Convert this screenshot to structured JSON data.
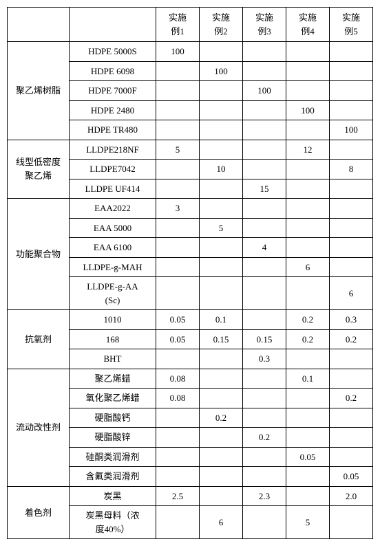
{
  "headers": {
    "c1": "实施\n例1",
    "c2": "实施\n例2",
    "c3": "实施\n例3",
    "c4": "实施\n例4",
    "c5": "实施\n例5"
  },
  "groups": [
    {
      "name": "聚乙烯树脂",
      "rows": [
        {
          "mat": "HDPE 5000S",
          "v": [
            "100",
            "",
            "",
            "",
            ""
          ]
        },
        {
          "mat": "HDPE 6098",
          "v": [
            "",
            "100",
            "",
            "",
            ""
          ]
        },
        {
          "mat": "HDPE 7000F",
          "v": [
            "",
            "",
            "100",
            "",
            ""
          ]
        },
        {
          "mat": "HDPE 2480",
          "v": [
            "",
            "",
            "",
            "100",
            ""
          ]
        },
        {
          "mat": "HDPE TR480",
          "v": [
            "",
            "",
            "",
            "",
            "100"
          ]
        }
      ]
    },
    {
      "name": "线型低密度\n聚乙烯",
      "rows": [
        {
          "mat": "LLDPE218NF",
          "v": [
            "5",
            "",
            "",
            "12",
            ""
          ]
        },
        {
          "mat": "LLDPE7042",
          "v": [
            "",
            "10",
            "",
            "",
            "8"
          ]
        },
        {
          "mat": "LLDPE UF414",
          "v": [
            "",
            "",
            "15",
            "",
            ""
          ]
        }
      ]
    },
    {
      "name": "功能聚合物",
      "rows": [
        {
          "mat": "EAA2022",
          "v": [
            "3",
            "",
            "",
            "",
            ""
          ]
        },
        {
          "mat": "EAA 5000",
          "v": [
            "",
            "5",
            "",
            "",
            ""
          ]
        },
        {
          "mat": "EAA 6100",
          "v": [
            "",
            "",
            "4",
            "",
            ""
          ]
        },
        {
          "mat": "LLDPE-g-MAH",
          "v": [
            "",
            "",
            "",
            "6",
            ""
          ]
        },
        {
          "mat": "LLDPE-g-AA\n(Sc)",
          "v": [
            "",
            "",
            "",
            "",
            "6"
          ]
        }
      ]
    },
    {
      "name": "抗氧剂",
      "rows": [
        {
          "mat": "1010",
          "v": [
            "0.05",
            "0.1",
            "",
            "0.2",
            "0.3"
          ]
        },
        {
          "mat": "168",
          "v": [
            "0.05",
            "0.15",
            "0.15",
            "0.2",
            "0.2"
          ]
        },
        {
          "mat": "BHT",
          "v": [
            "",
            "",
            "0.3",
            "",
            ""
          ]
        }
      ]
    },
    {
      "name": "流动改性剂",
      "rows": [
        {
          "mat": "聚乙烯蜡",
          "v": [
            "0.08",
            "",
            "",
            "0.1",
            ""
          ]
        },
        {
          "mat": "氧化聚乙烯蜡",
          "v": [
            "0.08",
            "",
            "",
            "",
            "0.2"
          ]
        },
        {
          "mat": "硬脂酸钙",
          "v": [
            "",
            "0.2",
            "",
            "",
            ""
          ]
        },
        {
          "mat": "硬脂酸锌",
          "v": [
            "",
            "",
            "0.2",
            "",
            ""
          ]
        },
        {
          "mat": "硅酮类润滑剂",
          "v": [
            "",
            "",
            "",
            "0.05",
            ""
          ]
        },
        {
          "mat": "含氟类润滑剂",
          "v": [
            "",
            "",
            "",
            "",
            "0.05"
          ]
        }
      ]
    },
    {
      "name": "着色剂",
      "rows": [
        {
          "mat": "炭黑",
          "v": [
            "2.5",
            "",
            "2.3",
            "",
            "2.0"
          ]
        },
        {
          "mat": "炭黑母料（浓\n度40%）",
          "v": [
            "",
            "6",
            "",
            "5",
            ""
          ]
        }
      ]
    }
  ]
}
